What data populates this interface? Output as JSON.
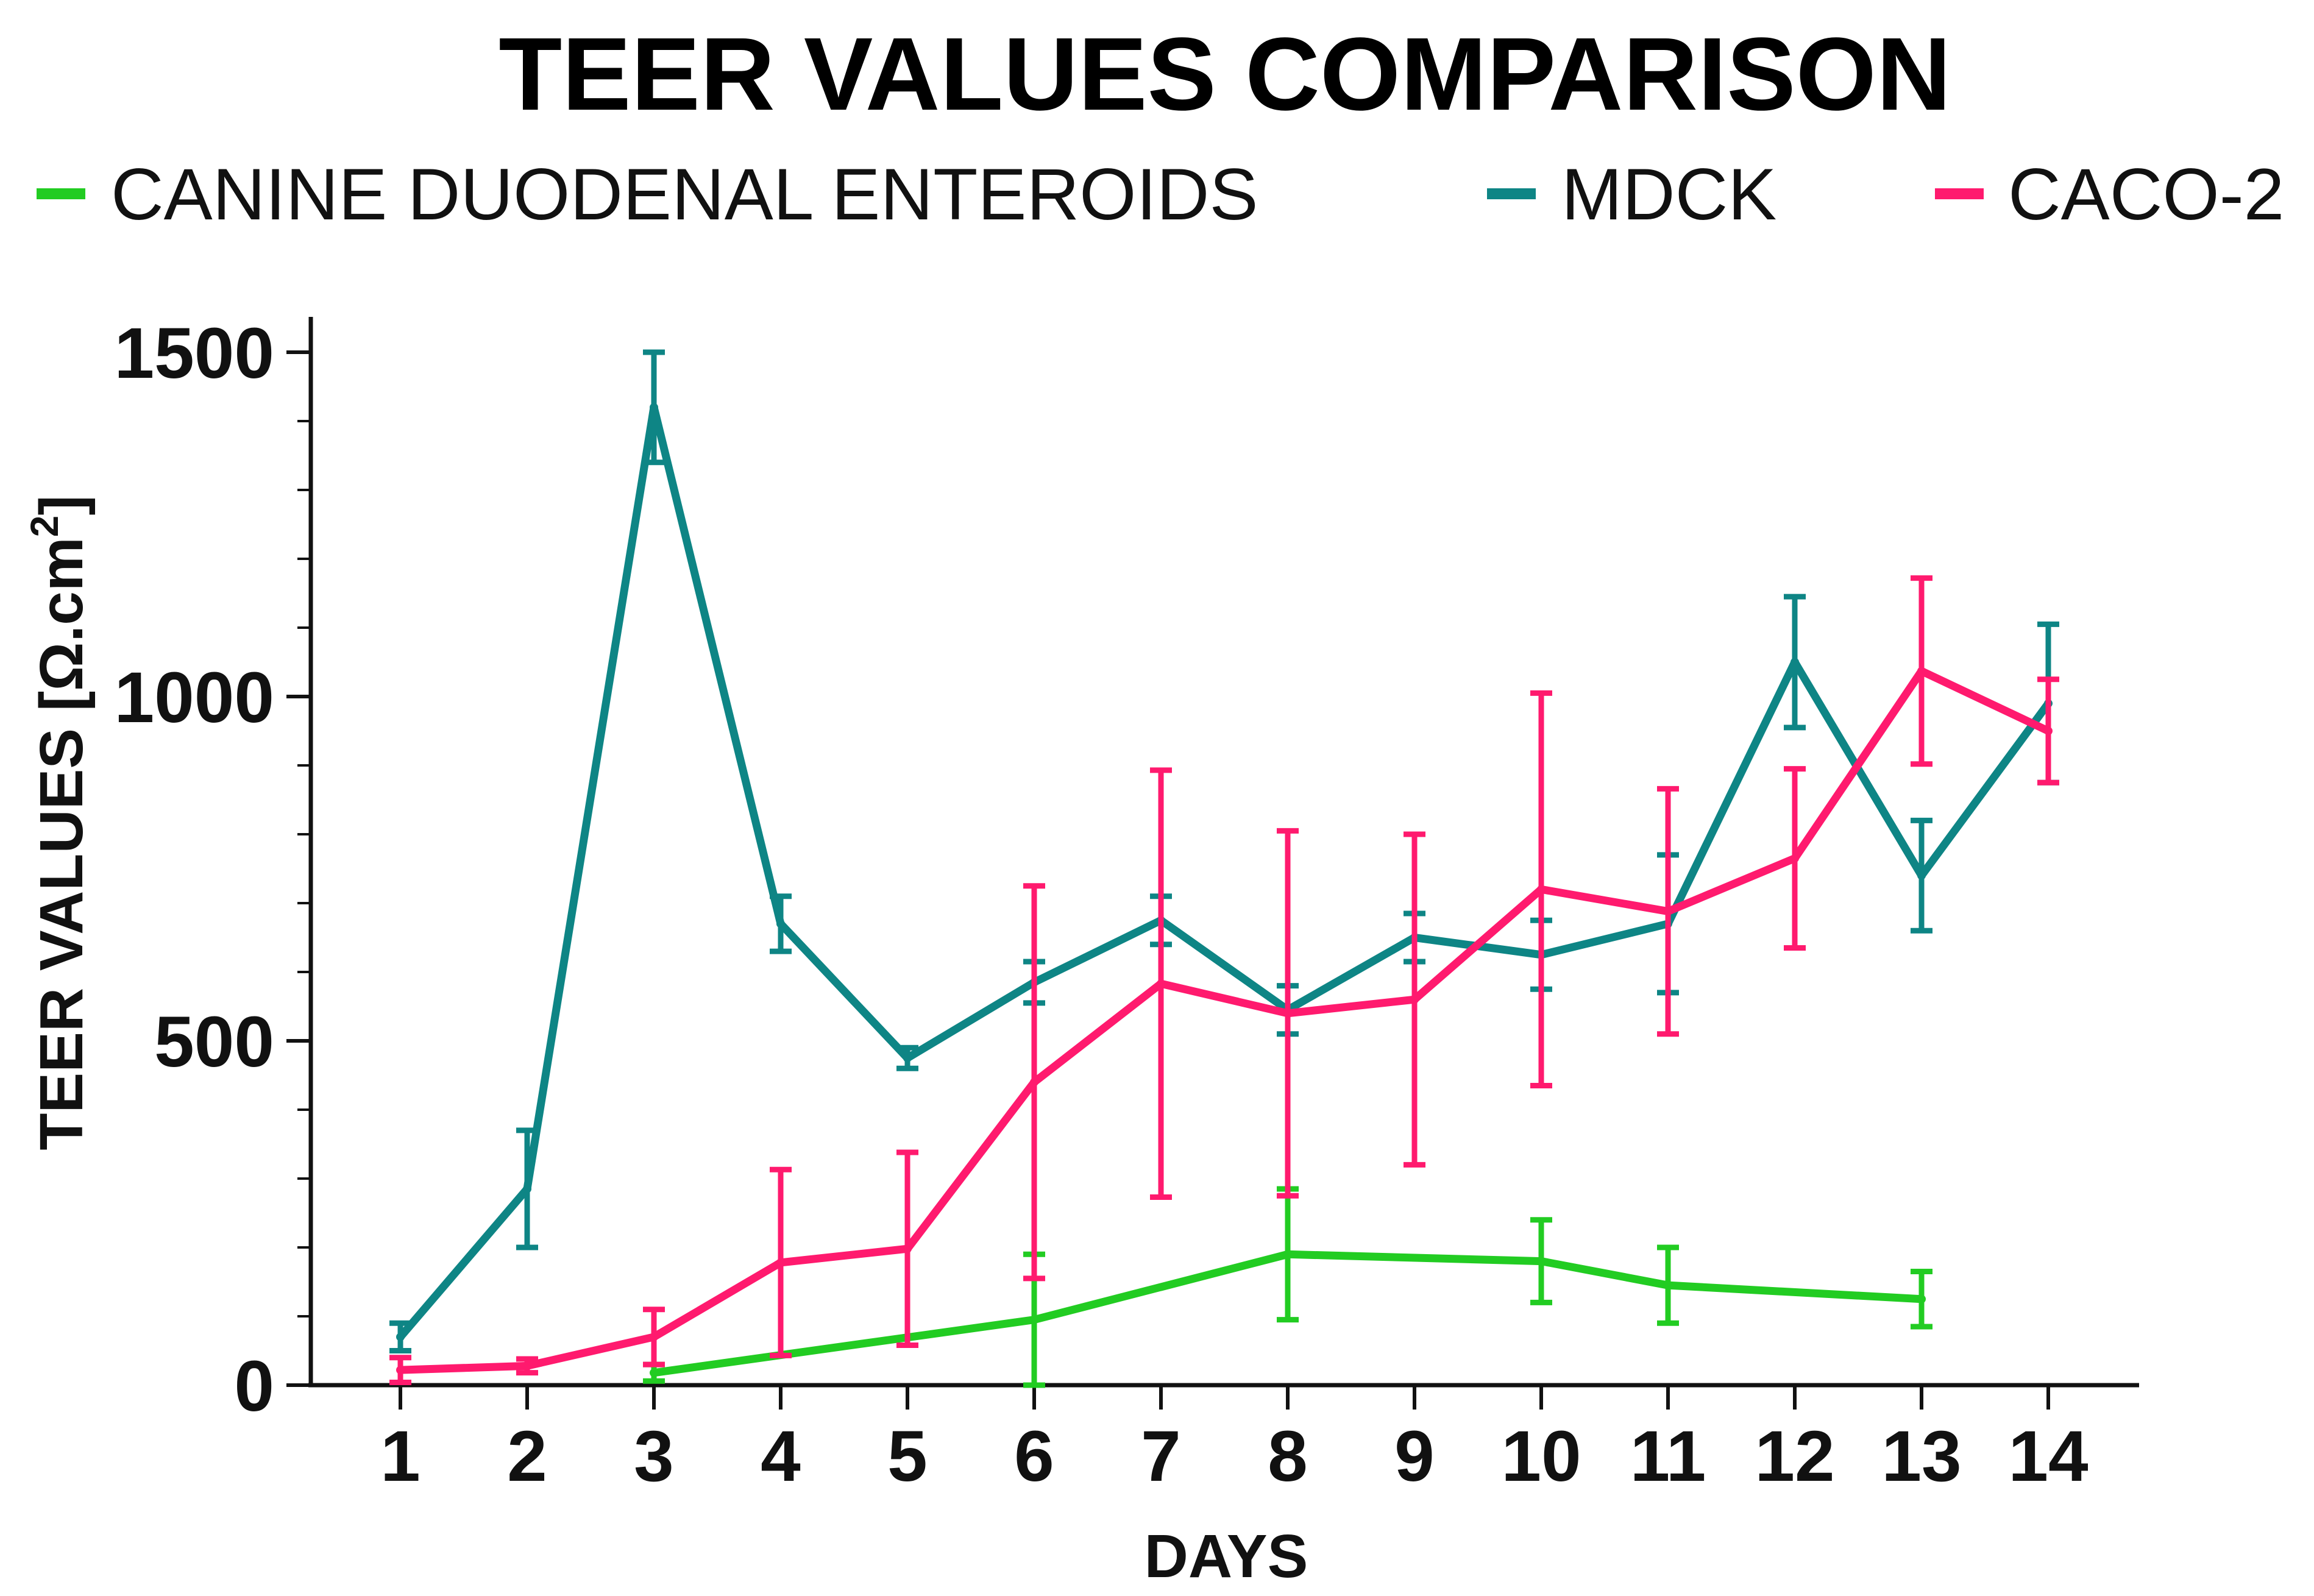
{
  "chart_data": {
    "type": "line",
    "title": "TEER VALUES COMPARISON",
    "xlabel": "DAYS",
    "ylabel": "TEER VALUES [Ω.cm",
    "ylabel_superscript": "2",
    "ylabel_suffix": "]",
    "ylim": [
      0,
      1500
    ],
    "xlim": [
      1,
      14
    ],
    "yticks": [
      0,
      500,
      1000,
      1500
    ],
    "yticks_labels": [
      "0",
      "500",
      "1000",
      "1500"
    ],
    "x": [
      1,
      2,
      3,
      4,
      5,
      6,
      7,
      8,
      9,
      10,
      11,
      12,
      13,
      14
    ],
    "x_labels": [
      "1",
      "2",
      "3",
      "4",
      "5",
      "6",
      "7",
      "8",
      "9",
      "10",
      "11",
      "12",
      "13",
      "14"
    ],
    "legend_position": "top",
    "series": [
      {
        "name": "CANINE DUODENAL ENTEROIDS",
        "color": "#22cc22",
        "points": [
          {
            "x": 3,
            "y": 18,
            "err": 12
          },
          {
            "x": 6,
            "y": 95,
            "err": 95
          },
          {
            "x": 8,
            "y": 190,
            "err": 95
          },
          {
            "x": 10,
            "y": 180,
            "err": 60
          },
          {
            "x": 11,
            "y": 145,
            "err": 55
          },
          {
            "x": 13,
            "y": 125,
            "err": 40
          }
        ]
      },
      {
        "name": "MDCK",
        "color": "#0e8585",
        "points": [
          {
            "x": 1,
            "y": 70,
            "err": 20
          },
          {
            "x": 2,
            "y": 285,
            "err": 85
          },
          {
            "x": 3,
            "y": 1420,
            "err": 80
          },
          {
            "x": 4,
            "y": 670,
            "err": 40
          },
          {
            "x": 5,
            "y": 475,
            "err": 15
          },
          {
            "x": 6,
            "y": 585,
            "err": 30
          },
          {
            "x": 7,
            "y": 675,
            "err": 35
          },
          {
            "x": 8,
            "y": 545,
            "err": 35
          },
          {
            "x": 9,
            "y": 650,
            "err": 35
          },
          {
            "x": 10,
            "y": 625,
            "err": 50
          },
          {
            "x": 11,
            "y": 670,
            "err": 100
          },
          {
            "x": 12,
            "y": 1050,
            "err": 95
          },
          {
            "x": 13,
            "y": 740,
            "err": 80
          },
          {
            "x": 14,
            "y": 990,
            "err": 115
          }
        ]
      },
      {
        "name": "CACO-2",
        "color": "#ff1a6e",
        "points": [
          {
            "x": 1,
            "y": 22,
            "err": 18
          },
          {
            "x": 2,
            "y": 28,
            "err": 10
          },
          {
            "x": 3,
            "y": 70,
            "err": 40
          },
          {
            "x": 4,
            "y": 178,
            "err": 135
          },
          {
            "x": 5,
            "y": 198,
            "err": 140
          },
          {
            "x": 6,
            "y": 440,
            "err": 285
          },
          {
            "x": 7,
            "y": 583,
            "err": 310
          },
          {
            "x": 8,
            "y": 540,
            "err": 265
          },
          {
            "x": 9,
            "y": 560,
            "err": 240
          },
          {
            "x": 10,
            "y": 720,
            "err": 285
          },
          {
            "x": 11,
            "y": 688,
            "err": 178
          },
          {
            "x": 12,
            "y": 765,
            "err": 130
          },
          {
            "x": 13,
            "y": 1037,
            "err": 135
          },
          {
            "x": 14,
            "y": 950,
            "err": 75
          }
        ]
      }
    ]
  }
}
